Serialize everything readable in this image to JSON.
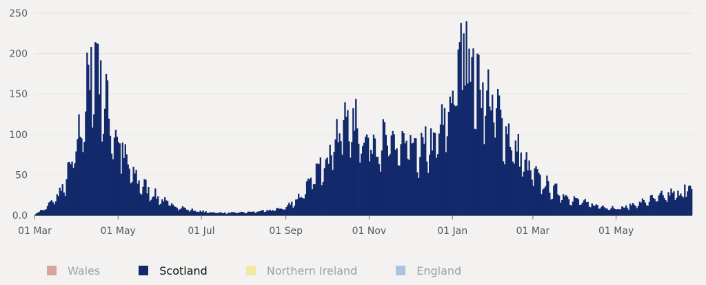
{
  "chart_data": {
    "type": "bar",
    "title": "",
    "xlabel": "",
    "ylabel": "",
    "ylim": [
      0,
      250
    ],
    "yticks": [
      "0.0",
      "50",
      "100",
      "150",
      "200",
      "250"
    ],
    "x_start": "2020-03-01",
    "x_end": "2021-06-25",
    "xticks": [
      {
        "date": "2020-03-01",
        "label": "01 Mar"
      },
      {
        "date": "2020-05-01",
        "label": "01 May"
      },
      {
        "date": "2020-07-01",
        "label": "01 Jul"
      },
      {
        "date": "2020-09-01",
        "label": "01 Sep"
      },
      {
        "date": "2020-11-01",
        "label": "01 Nov"
      },
      {
        "date": "2021-01-01",
        "label": "01 Jan"
      },
      {
        "date": "2021-03-01",
        "label": "01 Mar"
      },
      {
        "date": "2021-05-01",
        "label": "01 May"
      }
    ],
    "grid": true,
    "legend_position": "bottom-left",
    "series": [
      {
        "name": "Scotland",
        "color": "#12296b",
        "anchors": [
          [
            "2020-03-01",
            2
          ],
          [
            "2020-03-08",
            8
          ],
          [
            "2020-03-15",
            20
          ],
          [
            "2020-03-22",
            35
          ],
          [
            "2020-03-29",
            70
          ],
          [
            "2020-04-05",
            120
          ],
          [
            "2020-04-10",
            175
          ],
          [
            "2020-04-14",
            200
          ],
          [
            "2020-04-18",
            165
          ],
          [
            "2020-04-24",
            120
          ],
          [
            "2020-05-01",
            90
          ],
          [
            "2020-05-08",
            60
          ],
          [
            "2020-05-16",
            42
          ],
          [
            "2020-05-25",
            28
          ],
          [
            "2020-06-05",
            16
          ],
          [
            "2020-06-15",
            10
          ],
          [
            "2020-06-25",
            6
          ],
          [
            "2020-07-05",
            4
          ],
          [
            "2020-07-20",
            3
          ],
          [
            "2020-08-05",
            4
          ],
          [
            "2020-08-20",
            6
          ],
          [
            "2020-09-01",
            10
          ],
          [
            "2020-09-10",
            22
          ],
          [
            "2020-09-20",
            42
          ],
          [
            "2020-09-30",
            75
          ],
          [
            "2020-10-08",
            100
          ],
          [
            "2020-10-15",
            115
          ],
          [
            "2020-10-22",
            110
          ],
          [
            "2020-10-30",
            95
          ],
          [
            "2020-11-08",
            92
          ],
          [
            "2020-11-18",
            88
          ],
          [
            "2020-11-28",
            85
          ],
          [
            "2020-12-08",
            78
          ],
          [
            "2020-12-18",
            88
          ],
          [
            "2020-12-25",
            110
          ],
          [
            "2021-01-01",
            150
          ],
          [
            "2021-01-07",
            185
          ],
          [
            "2021-01-12",
            195
          ],
          [
            "2021-01-18",
            170
          ],
          [
            "2021-01-26",
            150
          ],
          [
            "2021-02-05",
            120
          ],
          [
            "2021-02-15",
            85
          ],
          [
            "2021-02-25",
            60
          ],
          [
            "2021-03-05",
            45
          ],
          [
            "2021-03-15",
            32
          ],
          [
            "2021-03-28",
            22
          ],
          [
            "2021-04-10",
            14
          ],
          [
            "2021-04-25",
            10
          ],
          [
            "2021-05-05",
            9
          ],
          [
            "2021-05-15",
            14
          ],
          [
            "2021-05-28",
            20
          ],
          [
            "2021-06-10",
            26
          ],
          [
            "2021-06-25",
            29
          ]
        ],
        "peaks": [
          [
            "2020-04-10",
            155
          ],
          [
            "2020-04-14",
            214
          ],
          [
            "2020-04-16",
            212
          ],
          [
            "2020-04-22",
            175
          ],
          [
            "2020-05-04",
            90
          ],
          [
            "2020-10-16",
            130
          ],
          [
            "2020-11-12",
            115
          ],
          [
            "2020-12-12",
            110
          ],
          [
            "2021-01-05",
            205
          ],
          [
            "2021-01-09",
            225
          ],
          [
            "2021-01-11",
            240
          ],
          [
            "2021-01-13",
            206
          ],
          [
            "2021-01-19",
            200
          ],
          [
            "2021-06-20",
            38
          ]
        ]
      },
      {
        "name": "Wales",
        "color": "#d9a39b",
        "anchors": [],
        "peaks": []
      },
      {
        "name": "Northern Ireland",
        "color": "#f2e8a2",
        "anchors": [],
        "peaks": []
      },
      {
        "name": "England",
        "color": "#a9c3e0",
        "anchors": [],
        "peaks": []
      }
    ]
  },
  "legend": {
    "items": [
      {
        "label": "Wales",
        "color": "#d9a39b",
        "active": false
      },
      {
        "label": "Scotland",
        "color": "#12296b",
        "active": true
      },
      {
        "label": "Northern Ireland",
        "color": "#f2e8a2",
        "active": false
      },
      {
        "label": "England",
        "color": "#a9c3e0",
        "active": false
      }
    ]
  }
}
